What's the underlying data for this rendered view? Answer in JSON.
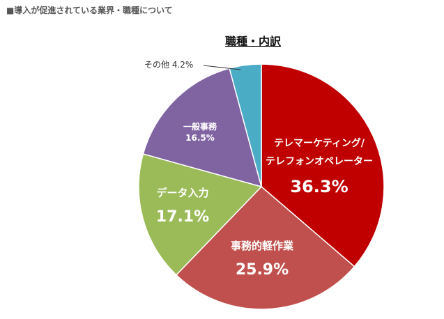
{
  "heading": "■導入が促進されている業界・職種について",
  "chart_data": {
    "type": "pie",
    "title": "職種・内訳",
    "start_angle_deg": 0,
    "direction": "clockwise",
    "slices": [
      {
        "lines": [
          "テレマーケティング/",
          "テレフォンオペレーター"
        ],
        "percent_label": "36.3%",
        "value": 36.3,
        "color": "#C00000"
      },
      {
        "lines": [
          "事務的軽作業"
        ],
        "percent_label": "25.9%",
        "value": 25.9,
        "color": "#C0504D"
      },
      {
        "lines": [
          "データ入力"
        ],
        "percent_label": "17.1%",
        "value": 17.1,
        "color": "#9BBB59"
      },
      {
        "lines": [
          "一般事務"
        ],
        "percent_label": "16.5%",
        "value": 16.5,
        "color": "#8064A2"
      },
      {
        "lines": [
          "その他"
        ],
        "percent_label": "4.2%",
        "value": 4.2,
        "color": "#4BACC6"
      }
    ]
  }
}
